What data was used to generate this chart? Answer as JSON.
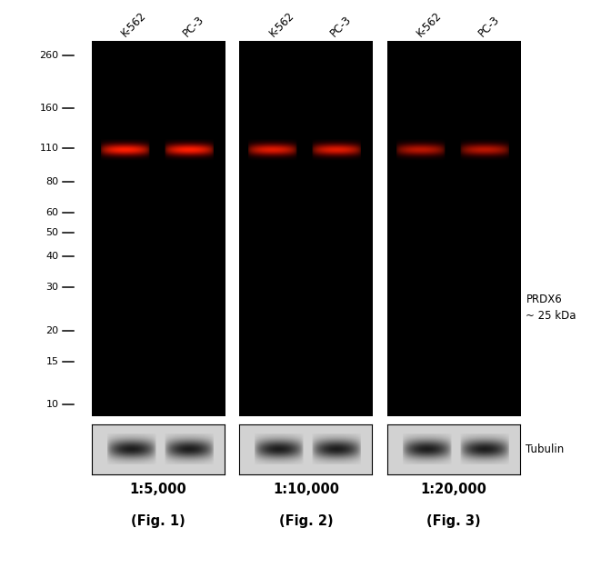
{
  "bg_color": "#000000",
  "white_bg": "#ffffff",
  "panel_bg": "#d8d8d8",
  "marker_labels": [
    "260",
    "160",
    "110",
    "80",
    "60",
    "50",
    "40",
    "30",
    "20",
    "15",
    "10"
  ],
  "marker_positions": [
    260,
    160,
    110,
    80,
    60,
    50,
    40,
    30,
    20,
    15,
    10
  ],
  "band_kda": 25,
  "col_labels": [
    "K-562",
    "PC-3"
  ],
  "panel_titles_line1": [
    "1:5,000",
    "1:10,000",
    "1:20,000"
  ],
  "panel_titles_line2": [
    "(Fig. 1)",
    "(Fig. 2)",
    "(Fig. 3)"
  ],
  "annotation_line1": "PRDX6",
  "annotation_line2": "~ 25 kDa",
  "tubulin_label": "Tubulin",
  "kda_min": 9,
  "kda_max": 300
}
